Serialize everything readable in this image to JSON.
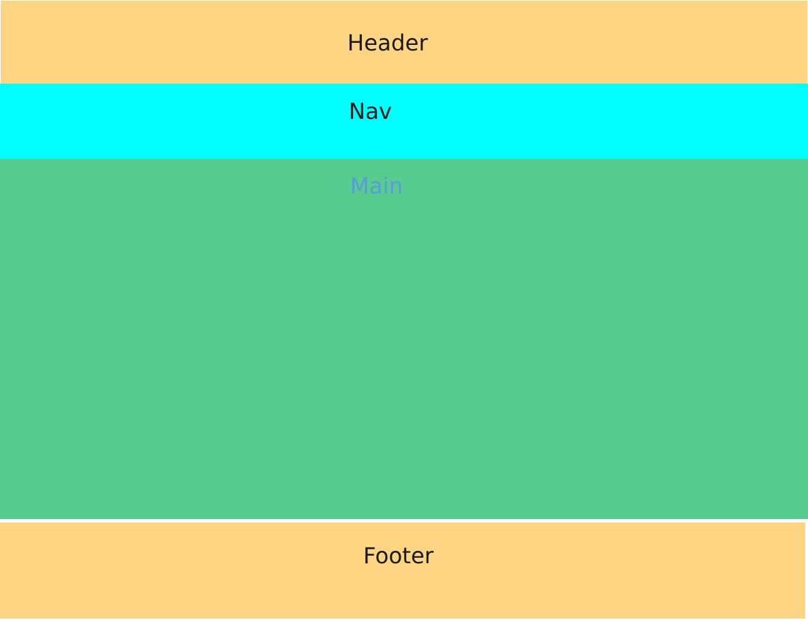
{
  "header": {
    "label": "Header",
    "background": "#FFD584",
    "text_color": "#1a1a1a"
  },
  "nav": {
    "label": "Nav",
    "background": "#00FFFF",
    "text_color": "#1a1a1a"
  },
  "main": {
    "label": "Main",
    "background": "#56CD8E",
    "text_color": "#5B9BD5"
  },
  "footer": {
    "label": "Footer",
    "background": "#FFD584",
    "text_color": "#1a1a1a"
  }
}
